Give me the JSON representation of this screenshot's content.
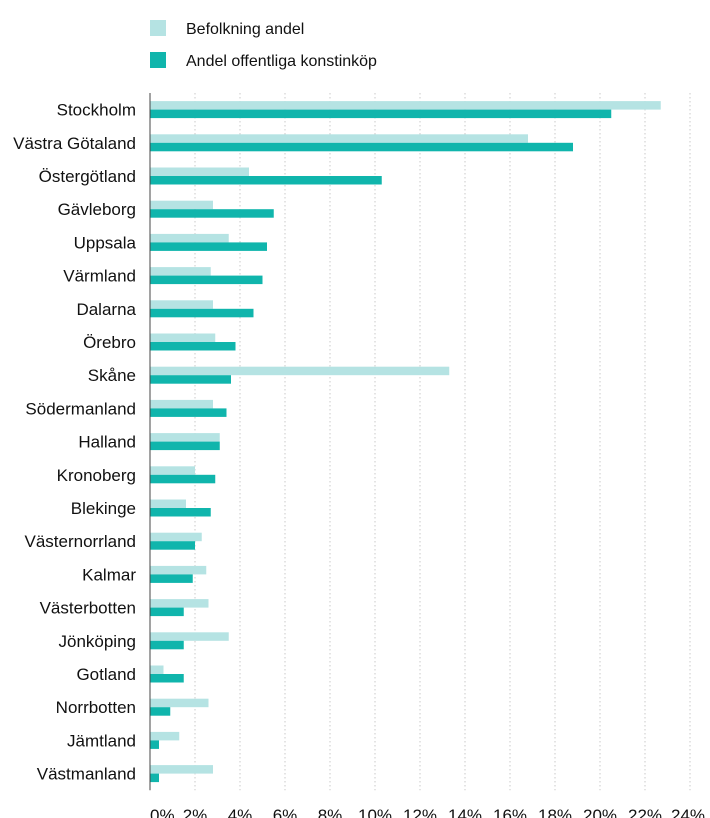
{
  "chart_data": {
    "type": "bar",
    "orientation": "horizontal",
    "categories": [
      "Stockholm",
      "Västra Götaland",
      "Östergötland",
      "Gävleborg",
      "Uppsala",
      "Värmland",
      "Dalarna",
      "Örebro",
      "Skåne",
      "Södermanland",
      "Halland",
      "Kronoberg",
      "Blekinge",
      "Västernorrland",
      "Kalmar",
      "Västerbotten",
      "Jönköping",
      "Gotland",
      "Norrbotten",
      "Jämtland",
      "Västmanland"
    ],
    "series": [
      {
        "name": "Befolkning andel",
        "color": "#b5e3e3",
        "values": [
          22.7,
          16.8,
          4.4,
          2.8,
          3.5,
          2.7,
          2.8,
          2.9,
          13.3,
          2.8,
          3.1,
          2.0,
          1.6,
          2.3,
          2.5,
          2.6,
          3.5,
          0.6,
          2.6,
          1.3,
          2.8
        ]
      },
      {
        "name": "Andel offentliga konstinköp",
        "color": "#10b5ac",
        "values": [
          20.5,
          18.8,
          10.3,
          5.5,
          5.2,
          5.0,
          4.6,
          3.8,
          3.6,
          3.4,
          3.1,
          2.9,
          2.7,
          2.0,
          1.9,
          1.5,
          1.5,
          1.5,
          0.9,
          0.4,
          0.4
        ]
      }
    ],
    "xlim": [
      0,
      24
    ],
    "xticks": [
      0,
      2,
      4,
      6,
      8,
      10,
      12,
      14,
      16,
      18,
      20,
      22,
      24
    ],
    "tick_labels": [
      "0%",
      "2%",
      "4%",
      "6%",
      "8%",
      "10%",
      "12%",
      "14%",
      "16%",
      "18%",
      "20%",
      "22%",
      "24%"
    ],
    "grid": "vertical dotted",
    "legend_position": "top-left",
    "title": "",
    "xlabel": "",
    "ylabel": ""
  }
}
